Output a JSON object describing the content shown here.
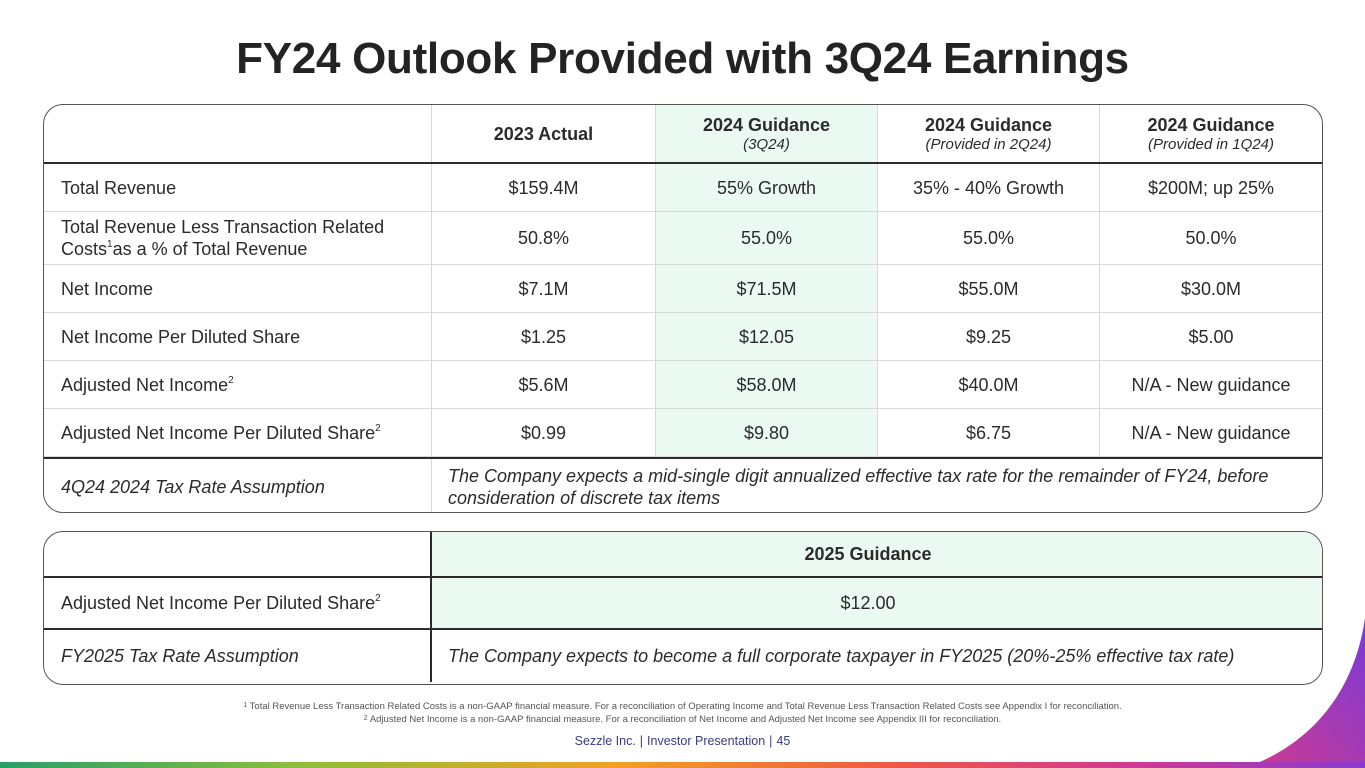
{
  "title": "FY24 Outlook Provided with 3Q24 Earnings",
  "table1": {
    "headers": [
      {
        "main": "",
        "sub": ""
      },
      {
        "main": "2023 Actual",
        "sub": ""
      },
      {
        "main": "2024 Guidance",
        "sub": "(3Q24)"
      },
      {
        "main": "2024 Guidance",
        "sub": "(Provided in 2Q24)"
      },
      {
        "main": "2024 Guidance",
        "sub": "(Provided in 1Q24)"
      }
    ],
    "rows": [
      {
        "label": "Total Revenue",
        "sup": "",
        "label2": "",
        "values": [
          "$159.4M",
          "55% Growth",
          "35% - 40% Growth",
          "$200M; up 25%"
        ]
      },
      {
        "label": "Total Revenue Less Transaction Related Costs",
        "sup": "1",
        "label2": "as a % of Total Revenue",
        "values": [
          "50.8%",
          "55.0%",
          "55.0%",
          "50.0%"
        ]
      },
      {
        "label": "Net Income",
        "sup": "",
        "label2": "",
        "values": [
          "$7.1M",
          "$71.5M",
          "$55.0M",
          "$30.0M"
        ]
      },
      {
        "label": "Net Income Per Diluted Share",
        "sup": "",
        "label2": "",
        "values": [
          "$1.25",
          "$12.05",
          "$9.25",
          "$5.00"
        ]
      },
      {
        "label": "Adjusted Net Income",
        "sup": "2",
        "label2": "",
        "values": [
          "$5.6M",
          "$58.0M",
          "$40.0M",
          "N/A - New guidance"
        ]
      },
      {
        "label": "Adjusted Net Income Per Diluted Share",
        "sup": "2",
        "label2": "",
        "values": [
          "$0.99",
          "$9.80",
          "$6.75",
          "N/A - New guidance"
        ]
      }
    ],
    "tax_row": {
      "label": "4Q24 2024 Tax Rate Assumption",
      "text": "The Company expects a mid-single digit annualized effective tax rate for the remainder of FY24, before consideration of discrete tax items"
    }
  },
  "table2": {
    "header": "2025 Guidance",
    "row": {
      "label": "Adjusted Net Income Per Diluted Share",
      "sup": "2",
      "value": "$12.00"
    },
    "tax_row": {
      "label": "FY2025 Tax Rate Assumption",
      "text": "The Company expects to become a full corporate taxpayer in FY2025 (20%-25% effective tax rate)"
    }
  },
  "footnotes": [
    {
      "num": "1",
      "text": "Total Revenue Less Transaction Related Costs is a non-GAAP financial measure. For a reconciliation of Operating Income and Total Revenue Less Transaction Related Costs see Appendix I for reconciliation."
    },
    {
      "num": "2",
      "text": "Adjusted Net Income is a non-GAAP financial measure. For a reconciliation of Net Income and Adjusted Net Income see Appendix III for reconciliation."
    }
  ],
  "footer": {
    "company": "Sezzle Inc.",
    "deck": "Investor Presentation",
    "page": "45"
  },
  "colors": {
    "highlight": "#eafaf3",
    "footer_text": "#3a3a8a"
  }
}
